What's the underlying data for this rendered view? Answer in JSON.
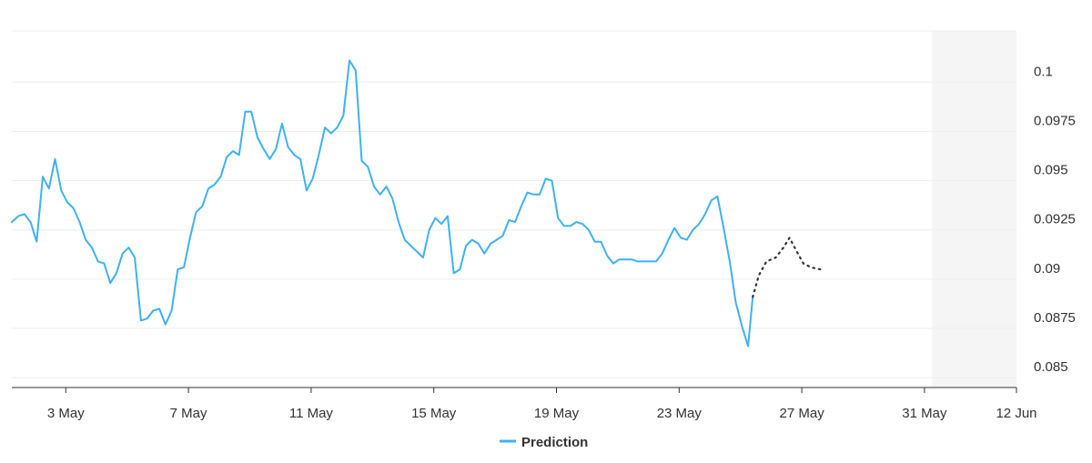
{
  "chart_data": {
    "type": "line",
    "title": "",
    "xlabel": "",
    "ylabel": "",
    "ylim": [
      0.0845,
      0.1026
    ],
    "y_ticks": [
      {
        "value": 0.085,
        "label": "0.085"
      },
      {
        "value": 0.0875,
        "label": "0.0875"
      },
      {
        "value": 0.09,
        "label": "0.09"
      },
      {
        "value": 0.0925,
        "label": "0.0925"
      },
      {
        "value": 0.095,
        "label": "0.095"
      },
      {
        "value": 0.0975,
        "label": "0.0975"
      },
      {
        "value": 0.1,
        "label": "0.1"
      }
    ],
    "x_ticks": [
      {
        "value": 2.0,
        "label": "3 May"
      },
      {
        "value": 6.0,
        "label": "7 May"
      },
      {
        "value": 10.0,
        "label": "11 May"
      },
      {
        "value": 14.0,
        "label": "15 May"
      },
      {
        "value": 18.0,
        "label": "19 May"
      },
      {
        "value": 22.0,
        "label": "23 May"
      },
      {
        "value": 26.0,
        "label": "27 May"
      },
      {
        "value": 30.0,
        "label": "31 May"
      },
      {
        "value": 33.0,
        "label": "12 Jun"
      }
    ],
    "x_range": [
      0.24,
      33.0
    ],
    "forecast_region": [
      30.25,
      33.0
    ],
    "grid": true,
    "legend_position": "bottom",
    "series": [
      {
        "name": "Prediction",
        "color": "#3db2f0",
        "style": "solid",
        "points": [
          [
            0.24,
            0.0929
          ],
          [
            0.45,
            0.0932
          ],
          [
            0.65,
            0.0933
          ],
          [
            0.85,
            0.0929
          ],
          [
            1.05,
            0.0919
          ],
          [
            1.25,
            0.0952
          ],
          [
            1.45,
            0.0946
          ],
          [
            1.65,
            0.0961
          ],
          [
            1.85,
            0.0945
          ],
          [
            2.05,
            0.0939
          ],
          [
            2.25,
            0.0936
          ],
          [
            2.45,
            0.0929
          ],
          [
            2.65,
            0.092
          ],
          [
            2.85,
            0.0916
          ],
          [
            3.05,
            0.0909
          ],
          [
            3.25,
            0.0908
          ],
          [
            3.45,
            0.0898
          ],
          [
            3.65,
            0.0903
          ],
          [
            3.85,
            0.0913
          ],
          [
            4.05,
            0.0916
          ],
          [
            4.25,
            0.0911
          ],
          [
            4.45,
            0.0879
          ],
          [
            4.65,
            0.088
          ],
          [
            4.85,
            0.0884
          ],
          [
            5.05,
            0.0885
          ],
          [
            5.25,
            0.0877
          ],
          [
            5.45,
            0.0884
          ],
          [
            5.65,
            0.0905
          ],
          [
            5.85,
            0.0906
          ],
          [
            6.05,
            0.0921
          ],
          [
            6.25,
            0.0934
          ],
          [
            6.45,
            0.0937
          ],
          [
            6.65,
            0.0946
          ],
          [
            6.85,
            0.0948
          ],
          [
            7.05,
            0.0952
          ],
          [
            7.25,
            0.0962
          ],
          [
            7.45,
            0.0965
          ],
          [
            7.65,
            0.0963
          ],
          [
            7.85,
            0.0985
          ],
          [
            8.05,
            0.0985
          ],
          [
            8.25,
            0.0972
          ],
          [
            8.45,
            0.0966
          ],
          [
            8.65,
            0.0961
          ],
          [
            8.85,
            0.0966
          ],
          [
            9.05,
            0.0979
          ],
          [
            9.25,
            0.0967
          ],
          [
            9.45,
            0.0963
          ],
          [
            9.65,
            0.0961
          ],
          [
            9.85,
            0.0945
          ],
          [
            10.05,
            0.0951
          ],
          [
            10.25,
            0.0963
          ],
          [
            10.45,
            0.0977
          ],
          [
            10.65,
            0.0974
          ],
          [
            10.85,
            0.0977
          ],
          [
            11.05,
            0.0983
          ],
          [
            11.25,
            0.1011
          ],
          [
            11.45,
            0.1006
          ],
          [
            11.65,
            0.096
          ],
          [
            11.85,
            0.0957
          ],
          [
            12.05,
            0.0947
          ],
          [
            12.25,
            0.0943
          ],
          [
            12.45,
            0.0947
          ],
          [
            12.65,
            0.0941
          ],
          [
            12.85,
            0.0929
          ],
          [
            13.05,
            0.092
          ],
          [
            13.25,
            0.0917
          ],
          [
            13.45,
            0.0914
          ],
          [
            13.65,
            0.0911
          ],
          [
            13.85,
            0.0925
          ],
          [
            14.05,
            0.0931
          ],
          [
            14.25,
            0.0928
          ],
          [
            14.45,
            0.0932
          ],
          [
            14.65,
            0.0903
          ],
          [
            14.85,
            0.0905
          ],
          [
            15.05,
            0.0917
          ],
          [
            15.25,
            0.092
          ],
          [
            15.45,
            0.0918
          ],
          [
            15.65,
            0.0913
          ],
          [
            15.85,
            0.0918
          ],
          [
            16.05,
            0.092
          ],
          [
            16.25,
            0.0922
          ],
          [
            16.45,
            0.093
          ],
          [
            16.65,
            0.0929
          ],
          [
            16.85,
            0.0937
          ],
          [
            17.05,
            0.0944
          ],
          [
            17.25,
            0.0943
          ],
          [
            17.45,
            0.0943
          ],
          [
            17.65,
            0.0951
          ],
          [
            17.85,
            0.095
          ],
          [
            18.05,
            0.0931
          ],
          [
            18.25,
            0.0927
          ],
          [
            18.45,
            0.0927
          ],
          [
            18.65,
            0.0929
          ],
          [
            18.85,
            0.0928
          ],
          [
            19.05,
            0.0925
          ],
          [
            19.25,
            0.0919
          ],
          [
            19.45,
            0.0919
          ],
          [
            19.65,
            0.0912
          ],
          [
            19.85,
            0.0908
          ],
          [
            20.05,
            0.091
          ],
          [
            20.25,
            0.091
          ],
          [
            20.45,
            0.091
          ],
          [
            20.65,
            0.0909
          ],
          [
            20.85,
            0.0909
          ],
          [
            21.05,
            0.0909
          ],
          [
            21.25,
            0.0909
          ],
          [
            21.45,
            0.0913
          ],
          [
            21.65,
            0.092
          ],
          [
            21.85,
            0.0926
          ],
          [
            22.05,
            0.0921
          ],
          [
            22.25,
            0.092
          ],
          [
            22.45,
            0.0925
          ],
          [
            22.65,
            0.0928
          ],
          [
            22.85,
            0.0933
          ],
          [
            23.05,
            0.094
          ],
          [
            23.25,
            0.0942
          ],
          [
            23.45,
            0.0926
          ],
          [
            23.65,
            0.0909
          ],
          [
            23.85,
            0.0888
          ],
          [
            24.05,
            0.0876
          ],
          [
            24.25,
            0.0866
          ],
          [
            24.4,
            0.0891
          ]
        ]
      },
      {
        "name": "",
        "color": "#333333",
        "style": "dotted",
        "points": [
          [
            24.4,
            0.0891
          ],
          [
            24.6,
            0.0902
          ],
          [
            24.85,
            0.0909
          ],
          [
            25.15,
            0.0911
          ],
          [
            25.4,
            0.0916
          ],
          [
            25.6,
            0.0921
          ],
          [
            25.8,
            0.0915
          ],
          [
            26.05,
            0.0908
          ],
          [
            26.3,
            0.0906
          ],
          [
            26.6,
            0.0905
          ]
        ]
      }
    ]
  },
  "legend": {
    "label": "Prediction",
    "color": "#3db2f0"
  }
}
